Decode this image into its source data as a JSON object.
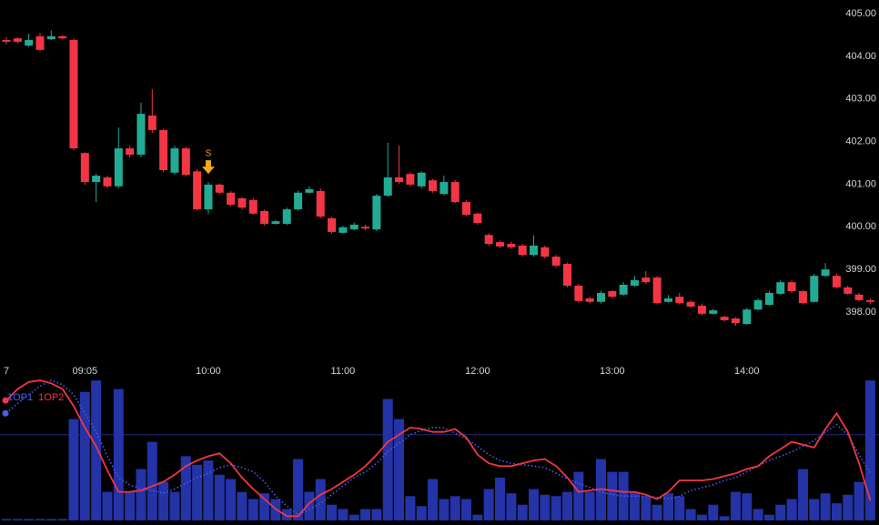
{
  "chart_data": [
    {
      "type": "candlestick",
      "x": [
        "08:30",
        "08:35",
        "08:40",
        "08:45",
        "08:50",
        "08:55",
        "09:00",
        "09:05",
        "09:10",
        "09:15",
        "09:20",
        "09:25",
        "09:30",
        "09:35",
        "09:40",
        "09:45",
        "09:50",
        "09:55",
        "10:00",
        "10:05",
        "10:10",
        "10:15",
        "10:20",
        "10:25",
        "10:30",
        "10:35",
        "10:40",
        "10:45",
        "10:50",
        "10:55",
        "11:00",
        "11:05",
        "11:10",
        "11:15",
        "11:20",
        "11:25",
        "11:30",
        "11:35",
        "11:40",
        "11:45",
        "11:50",
        "11:55",
        "12:00",
        "12:05",
        "12:10",
        "12:15",
        "12:20",
        "12:25",
        "12:30",
        "12:35",
        "12:40",
        "12:45",
        "12:50",
        "12:55",
        "13:00",
        "13:05",
        "13:10",
        "13:15",
        "13:20",
        "13:25",
        "13:30",
        "13:35",
        "13:40",
        "13:45",
        "13:50",
        "13:55",
        "14:00",
        "14:05",
        "14:10",
        "14:15",
        "14:20",
        "14:25",
        "14:30",
        "14:35",
        "14:40",
        "14:45",
        "14:50",
        "14:55"
      ],
      "open": [
        404.38,
        404.42,
        404.25,
        404.47,
        404.4,
        404.47,
        404.38,
        401.73,
        401.05,
        401.16,
        400.95,
        401.84,
        401.69,
        402.61,
        402.27,
        401.27,
        401.84,
        401.3,
        400.41,
        400.99,
        400.8,
        400.67,
        400.63,
        400.37,
        400.07,
        400.07,
        400.41,
        400.8,
        400.84,
        400.2,
        399.86,
        399.94,
        400.0,
        399.94,
        400.73,
        401.16,
        401.24,
        400.95,
        401.09,
        400.77,
        401.05,
        400.58,
        400.31,
        399.81,
        399.64,
        399.6,
        399.56,
        399.34,
        399.52,
        399.3,
        399.13,
        398.62,
        398.32,
        398.24,
        398.49,
        398.41,
        398.62,
        398.81,
        398.81,
        398.24,
        398.36,
        398.24,
        398.15,
        397.96,
        397.89,
        397.85,
        397.72,
        398.06,
        398.17,
        398.43,
        398.7,
        398.49,
        398.24,
        398.85,
        398.85,
        398.58,
        398.41,
        398.28
      ],
      "high": [
        404.45,
        404.45,
        404.53,
        404.55,
        404.6,
        404.5,
        404.42,
        401.75,
        401.25,
        401.2,
        402.33,
        401.9,
        402.91,
        403.23,
        402.3,
        401.9,
        401.88,
        401.35,
        401.05,
        401.02,
        400.84,
        400.7,
        400.68,
        400.4,
        400.16,
        400.45,
        400.85,
        400.95,
        400.9,
        400.24,
        400.02,
        400.1,
        400.05,
        400.77,
        401.97,
        401.91,
        401.28,
        401.3,
        401.12,
        401.2,
        401.1,
        400.62,
        400.34,
        399.85,
        399.68,
        399.65,
        399.6,
        399.8,
        399.56,
        399.34,
        399.16,
        398.66,
        398.36,
        398.5,
        398.52,
        398.7,
        398.85,
        398.96,
        398.85,
        398.4,
        398.45,
        398.28,
        398.2,
        398.08,
        397.92,
        397.88,
        398.1,
        398.32,
        398.5,
        398.75,
        398.74,
        398.52,
        398.9,
        399.15,
        398.9,
        398.62,
        398.45,
        398.32
      ],
      "low": [
        404.28,
        404.3,
        404.22,
        404.12,
        404.38,
        404.4,
        401.8,
        400.98,
        400.58,
        400.9,
        400.9,
        401.63,
        401.63,
        402.2,
        401.28,
        401.22,
        401.18,
        400.38,
        400.3,
        400.76,
        400.48,
        400.4,
        400.28,
        400.03,
        400.05,
        400.04,
        400.38,
        400.78,
        400.2,
        399.84,
        399.84,
        399.92,
        399.92,
        399.9,
        400.7,
        401.0,
        400.95,
        400.9,
        400.8,
        400.74,
        400.55,
        400.25,
        400.05,
        399.55,
        399.5,
        399.48,
        399.3,
        399.3,
        399.26,
        399.05,
        398.58,
        398.22,
        398.2,
        398.2,
        398.32,
        398.38,
        398.6,
        398.66,
        398.18,
        398.22,
        398.18,
        398.1,
        397.92,
        397.94,
        397.78,
        397.68,
        397.7,
        398.04,
        398.15,
        398.4,
        398.45,
        398.18,
        398.22,
        398.82,
        398.55,
        398.4,
        398.25,
        398.2
      ],
      "close": [
        404.34,
        404.34,
        404.38,
        404.15,
        404.47,
        404.42,
        401.84,
        401.05,
        401.2,
        400.95,
        401.84,
        401.69,
        402.65,
        402.27,
        401.33,
        401.84,
        401.22,
        400.41,
        400.99,
        400.8,
        400.52,
        400.45,
        400.31,
        400.07,
        400.13,
        400.41,
        400.8,
        400.88,
        400.24,
        399.88,
        399.99,
        400.05,
        399.96,
        400.73,
        401.16,
        401.05,
        400.99,
        401.27,
        400.84,
        401.05,
        400.58,
        400.28,
        400.09,
        399.6,
        399.54,
        399.52,
        399.34,
        399.56,
        399.3,
        399.09,
        398.62,
        398.26,
        398.24,
        398.45,
        398.36,
        398.64,
        398.75,
        398.7,
        398.21,
        398.32,
        398.21,
        398.13,
        397.96,
        398.04,
        397.81,
        397.74,
        398.06,
        398.28,
        398.45,
        398.7,
        398.49,
        398.21,
        398.85,
        399.0,
        398.58,
        398.43,
        398.28,
        398.24
      ],
      "up_color": "#22ab94",
      "down_color": "#f23645",
      "ylim": [
        396.89,
        405.32
      ],
      "yticks": [
        {
          "value": 398,
          "label": "398.00"
        },
        {
          "value": 399,
          "label": "399.00"
        },
        {
          "value": 400,
          "label": "400.00"
        },
        {
          "value": 401,
          "label": "401.00"
        },
        {
          "value": 402,
          "label": "402.00"
        },
        {
          "value": 403,
          "label": "403.00"
        },
        {
          "value": 404,
          "label": "404.00"
        },
        {
          "value": 405,
          "label": "405.00"
        }
      ],
      "xticks": [
        {
          "value": "08:30",
          "label": "7"
        },
        "09:05",
        "10:00",
        "11:00",
        "12:00",
        "13:00",
        "14:00"
      ],
      "annotations": [
        {
          "x": "10:00",
          "label": "S",
          "color": "#f5a623"
        }
      ]
    },
    {
      "type": "indicator",
      "volume": {
        "color": "#2433a6",
        "values": [
          1,
          1,
          1,
          1,
          1,
          1,
          71,
          90,
          98,
          20,
          92,
          20,
          36,
          55,
          27,
          20,
          45,
          39,
          42,
          32,
          29,
          20,
          15,
          19,
          15,
          8,
          43,
          20,
          29,
          11,
          8,
          4,
          8,
          8,
          85,
          71,
          17,
          10,
          29,
          15,
          17,
          15,
          4,
          22,
          30,
          19,
          11,
          22,
          18,
          17,
          20,
          34,
          20,
          43,
          34,
          34,
          20,
          17,
          11,
          19,
          17,
          8,
          4,
          11,
          3,
          20,
          19,
          8,
          4,
          11,
          15,
          36,
          15,
          19,
          12,
          18,
          27,
          98
        ]
      },
      "series": [
        {
          "name": "1OP1",
          "color": "#4a5cf0",
          "style": "dotted",
          "values": [
            75,
            82,
            88,
            94,
            98,
            95,
            88,
            75,
            62,
            45,
            30,
            25,
            22,
            21,
            19,
            22,
            26,
            30,
            33,
            37,
            39,
            37,
            34,
            27,
            17,
            10,
            4,
            8,
            12,
            18,
            24,
            30,
            34,
            40,
            48,
            54,
            60,
            63,
            65,
            65,
            61,
            57,
            52,
            46,
            42,
            40,
            39,
            38,
            37,
            33,
            29,
            26,
            23,
            20,
            18,
            17,
            17,
            17,
            16,
            15,
            17,
            21,
            23,
            25,
            28,
            30,
            34,
            38,
            42,
            45,
            48,
            52,
            56,
            62,
            67,
            60,
            46,
            33
          ]
        },
        {
          "name": "1OP2",
          "color": "#f23645",
          "style": "solid",
          "values": [
            84,
            92,
            97,
            98,
            96,
            92,
            80,
            65,
            52,
            35,
            20,
            20,
            21,
            24,
            27,
            32,
            38,
            42,
            45,
            47,
            40,
            30,
            22,
            15,
            8,
            3,
            3,
            12,
            18,
            22,
            27,
            32,
            38,
            46,
            55,
            60,
            65,
            64,
            62,
            62,
            64,
            58,
            46,
            40,
            38,
            38,
            40,
            42,
            43,
            38,
            30,
            20,
            21,
            22,
            21,
            20,
            20,
            18,
            15,
            20,
            28,
            28,
            28,
            29,
            31,
            33,
            36,
            38,
            45,
            50,
            55,
            53,
            51,
            64,
            75,
            62,
            40,
            14
          ]
        }
      ],
      "ylim": [
        0,
        100
      ],
      "level": 60
    }
  ]
}
